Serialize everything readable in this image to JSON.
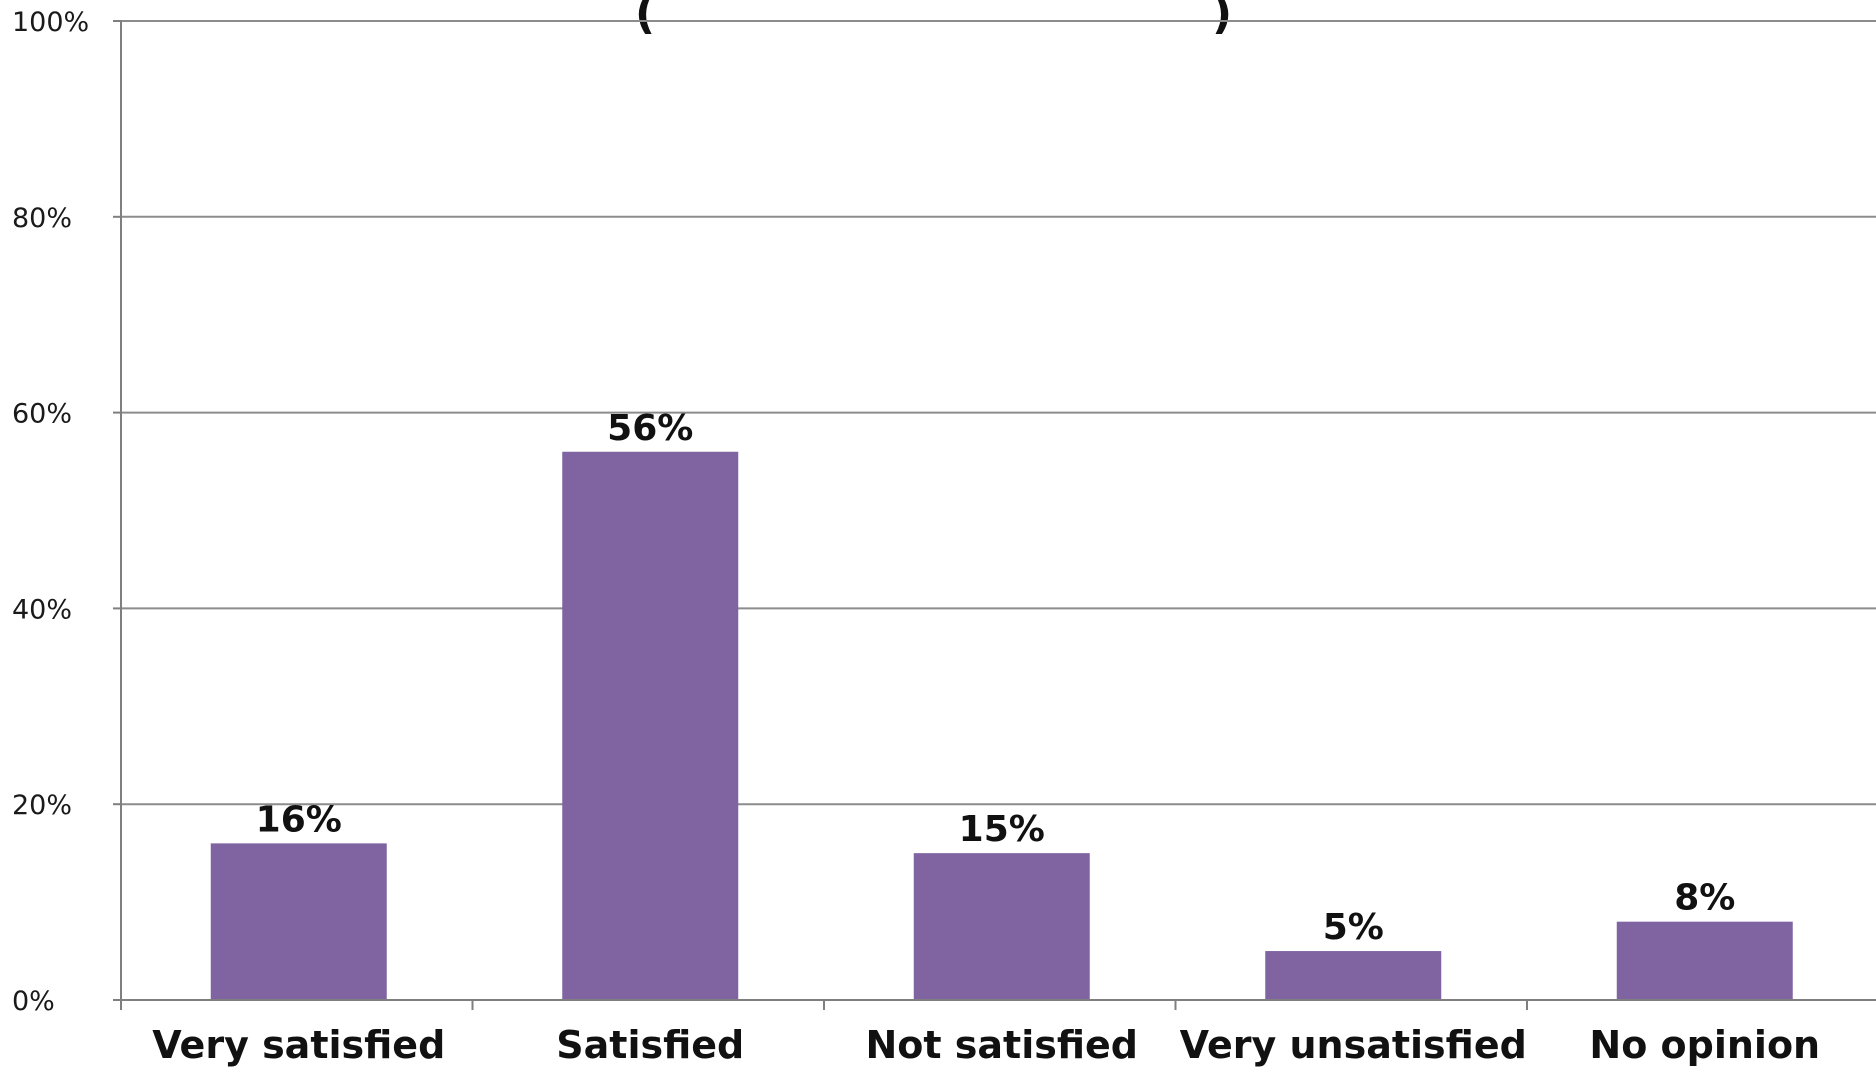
{
  "chart_data": {
    "type": "bar",
    "title": "(",
    "title_tail": ")",
    "categories": [
      "Very satisfied",
      "Satisfied",
      "Not satisfied",
      "Very unsatisfied",
      "No opinion"
    ],
    "values": [
      16,
      56,
      15,
      5,
      8
    ],
    "data_labels": [
      "16%",
      "56%",
      "15%",
      "5%",
      "8%"
    ],
    "ylim": [
      0,
      100
    ],
    "y_ticks": [
      {
        "value": 0,
        "label": "0%"
      },
      {
        "value": 20,
        "label": "20%"
      },
      {
        "value": 40,
        "label": "40%"
      },
      {
        "value": 60,
        "label": "60%"
      },
      {
        "value": 80,
        "label": "80%"
      },
      {
        "value": 100,
        "label": "100%"
      }
    ],
    "grid": true,
    "bar_color": "#8064a2",
    "grid_color": "#8c8c8c",
    "axis_color": "#7f7f7f"
  }
}
